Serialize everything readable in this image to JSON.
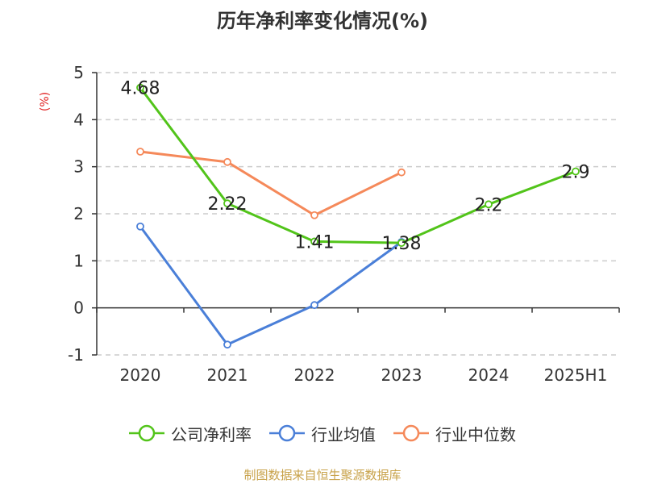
{
  "chart_data": {
    "type": "line",
    "title": "历年净利率变化情况(%)",
    "ylabel": "(%)",
    "categories": [
      "2020",
      "2021",
      "2022",
      "2023",
      "2024",
      "2025H1"
    ],
    "ylim": [
      -1,
      5
    ],
    "yticks": [
      "5",
      "4",
      "3",
      "2",
      "1",
      "0",
      "-1"
    ],
    "grid": true,
    "legend_position": "bottom",
    "series": [
      {
        "name": "公司净利率",
        "color": "#52c41a",
        "values": [
          4.68,
          2.22,
          1.41,
          1.38,
          2.2,
          2.9
        ],
        "labels": [
          "4.68",
          "2.22",
          "1.41",
          "1.38",
          "2.2",
          "2.9"
        ]
      },
      {
        "name": "行业均值",
        "color": "#4a7fd8",
        "values": [
          1.73,
          -0.78,
          0.06,
          1.4,
          null,
          null
        ]
      },
      {
        "name": "行业中位数",
        "color": "#f5895a",
        "values": [
          3.32,
          3.1,
          1.97,
          2.88,
          null,
          null
        ]
      }
    ]
  },
  "source_text": "制图数据来自恒生聚源数据库",
  "source_color": "#c8a24a",
  "ylabel_color": "#e02020"
}
